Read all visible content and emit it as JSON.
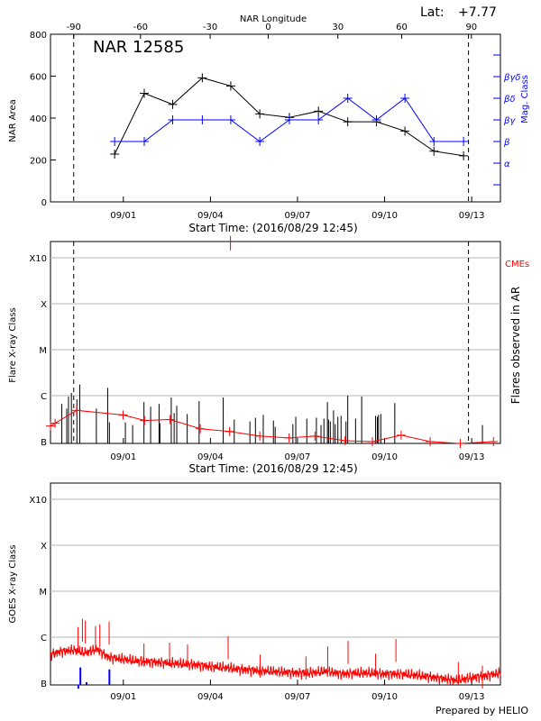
{
  "header": {
    "lat_label": "Lat:",
    "lat_value": "+7.77",
    "credit": "Prepared by HELIO"
  },
  "colors": {
    "axis": "#000000",
    "area_line": "#000000",
    "mag_line": "#0000ff",
    "flux_line": "#ff0000",
    "cme": "#ff0000",
    "grid": "#b4b4b4"
  },
  "chart_data": [
    {
      "type": "line",
      "title": "NAR 12585",
      "xlabel": "Start Time: (2016/08/29 12:45)",
      "ylabel": "NAR Area",
      "y2label": "Mag. Class",
      "top_axis_label": "NAR Longitude",
      "xlim": [
        0,
        15.5
      ],
      "ylim": [
        0,
        800
      ],
      "x_ticks": [
        {
          "x": 2.51,
          "label": "09/01"
        },
        {
          "x": 5.51,
          "label": "09/04"
        },
        {
          "x": 8.51,
          "label": "09/07"
        },
        {
          "x": 11.51,
          "label": "09/10"
        },
        {
          "x": 14.51,
          "label": "09/13"
        }
      ],
      "y_ticks": [
        0,
        200,
        400,
        600,
        800
      ],
      "longitude_ticks": [
        {
          "x": 0.8,
          "label": "-90"
        },
        {
          "x": 3.1,
          "label": "-60"
        },
        {
          "x": 5.5,
          "label": "-30"
        },
        {
          "x": 7.5,
          "label": "0"
        },
        {
          "x": 9.9,
          "label": "30"
        },
        {
          "x": 12.1,
          "label": "60"
        },
        {
          "x": 14.5,
          "label": "90"
        }
      ],
      "mag_class_ticks": [
        {
          "label": "α",
          "level": 1
        },
        {
          "label": "β",
          "level": 2
        },
        {
          "label": "βγ",
          "level": 3
        },
        {
          "label": "βδ",
          "level": 4
        },
        {
          "label": "βγδ",
          "level": 5
        }
      ],
      "vlines_dashed": [
        0.8,
        14.4
      ],
      "series": [
        {
          "key": "area",
          "x": [
            2.21,
            3.23,
            4.21,
            5.23,
            6.21,
            7.21,
            8.23,
            9.23,
            10.24,
            11.23,
            12.21,
            13.21,
            14.23
          ],
          "values": [
            228,
            518,
            465,
            592,
            553,
            420,
            403,
            433,
            382,
            382,
            338,
            242,
            220
          ]
        },
        {
          "key": "mag_class",
          "x": [
            2.21,
            3.23,
            4.21,
            5.23,
            6.21,
            7.21,
            8.23,
            9.23,
            10.24,
            11.23,
            12.21,
            13.21,
            14.23
          ],
          "levels": [
            2,
            2,
            3,
            3,
            3,
            2,
            3,
            3,
            4,
            3,
            4,
            2,
            2
          ]
        }
      ]
    },
    {
      "type": "bar",
      "xlabel": "Start Time: (2016/08/29 12:45)",
      "ylabel": "Flare X-ray Class",
      "y2label": "Flares observed in AR",
      "legend": "CMEs",
      "xlim": [
        0,
        15.5
      ],
      "y_ticks": [
        {
          "label": "B",
          "level": 0
        },
        {
          "label": "C",
          "level": 1
        },
        {
          "label": "M",
          "level": 2
        },
        {
          "label": "X",
          "level": 3
        },
        {
          "label": "X10",
          "level": 4
        }
      ],
      "x_ticks": [
        {
          "x": 2.51,
          "label": "09/01"
        },
        {
          "x": 5.51,
          "label": "09/04"
        },
        {
          "x": 8.51,
          "label": "09/07"
        },
        {
          "x": 11.51,
          "label": "09/10"
        },
        {
          "x": 14.51,
          "label": "09/13"
        }
      ],
      "vlines_dashed": [
        0.8,
        14.4
      ],
      "flares": [
        {
          "x": 0.39,
          "level": 0.82
        },
        {
          "x": 0.56,
          "level": 0.72
        },
        {
          "x": 0.62,
          "level": 0.98
        },
        {
          "x": 0.72,
          "level": 1.06
        },
        {
          "x": 0.91,
          "level": 0.92
        },
        {
          "x": 1.01,
          "level": 1.24
        },
        {
          "x": 1.58,
          "level": 0.72
        },
        {
          "x": 1.97,
          "level": 1.17
        },
        {
          "x": 2.03,
          "level": 0.42
        },
        {
          "x": 2.58,
          "level": 0.42
        },
        {
          "x": 2.83,
          "level": 0.36
        },
        {
          "x": 3.22,
          "level": 0.86
        },
        {
          "x": 3.45,
          "level": 0.76
        },
        {
          "x": 3.74,
          "level": 0.82
        },
        {
          "x": 3.77,
          "level": 0.4
        },
        {
          "x": 4.16,
          "level": 0.96
        },
        {
          "x": 4.26,
          "level": 0.62
        },
        {
          "x": 4.35,
          "level": 0.78
        },
        {
          "x": 4.71,
          "level": 0.6
        },
        {
          "x": 5.12,
          "level": 0.88
        },
        {
          "x": 5.95,
          "level": 0.96
        },
        {
          "x": 6.33,
          "level": 0.48
        },
        {
          "x": 6.87,
          "level": 0.44
        },
        {
          "x": 7.06,
          "level": 0.52
        },
        {
          "x": 7.33,
          "level": 0.58
        },
        {
          "x": 7.68,
          "level": 0.46
        },
        {
          "x": 7.74,
          "level": 0.32
        },
        {
          "x": 8.35,
          "level": 0.38
        },
        {
          "x": 8.45,
          "level": 0.54
        },
        {
          "x": 8.83,
          "level": 0.5
        },
        {
          "x": 9.16,
          "level": 0.52
        },
        {
          "x": 9.32,
          "level": 0.36
        },
        {
          "x": 9.42,
          "level": 0.5
        },
        {
          "x": 9.54,
          "level": 0.86
        },
        {
          "x": 9.58,
          "level": 0.48
        },
        {
          "x": 9.64,
          "level": 0.44
        },
        {
          "x": 9.75,
          "level": 0.68
        },
        {
          "x": 9.81,
          "level": 0.38
        },
        {
          "x": 9.9,
          "level": 0.54
        },
        {
          "x": 10.01,
          "level": 0.56
        },
        {
          "x": 10.18,
          "level": 0.44
        },
        {
          "x": 10.24,
          "level": 1.0
        },
        {
          "x": 10.51,
          "level": 0.5
        },
        {
          "x": 10.72,
          "level": 0.98
        },
        {
          "x": 11.2,
          "level": 0.56
        },
        {
          "x": 11.26,
          "level": 0.54
        },
        {
          "x": 11.3,
          "level": 0.58
        },
        {
          "x": 11.38,
          "level": 0.6
        },
        {
          "x": 11.86,
          "level": 0.84
        },
        {
          "x": 14.88,
          "level": 0.36
        }
      ],
      "cmes": [
        {
          "x": 6.2,
          "level": 4.16
        }
      ],
      "flux_track": {
        "x": [
          0.0,
          0.16,
          0.9,
          2.5,
          3.24,
          4.12,
          5.16,
          6.17,
          7.21,
          8.22,
          9.11,
          10.15,
          11.09,
          12.08,
          13.08,
          14.12,
          15.26
        ],
        "levels": [
          0.34,
          0.4,
          0.68,
          0.58,
          0.46,
          0.48,
          0.28,
          0.22,
          0.12,
          0.08,
          0.12,
          0.02,
          0.0,
          0.14,
          0.0,
          -0.04,
          0.0
        ]
      }
    },
    {
      "type": "line",
      "ylabel": "GOES X-ray Class",
      "xlim": [
        0,
        15.5
      ],
      "y_ticks": [
        {
          "label": "B",
          "level": 0
        },
        {
          "label": "C",
          "level": 1
        },
        {
          "label": "M",
          "level": 2
        },
        {
          "label": "X",
          "level": 3
        },
        {
          "label": "X10",
          "level": 4
        }
      ],
      "x_ticks": [
        {
          "x": 2.51,
          "label": "09/01"
        },
        {
          "x": 5.51,
          "label": "09/04"
        },
        {
          "x": 8.51,
          "label": "09/07"
        },
        {
          "x": 11.51,
          "label": "09/10"
        },
        {
          "x": 14.51,
          "label": "09/13"
        }
      ],
      "flux": {
        "x": [
          0.0,
          0.3,
          0.8,
          1.2,
          1.6,
          2.0,
          2.5,
          3.0,
          3.5,
          4.0,
          4.5,
          5.0,
          5.5,
          6.0,
          6.5,
          7.0,
          7.5,
          8.0,
          8.5,
          9.0,
          9.5,
          10.0,
          10.5,
          11.0,
          11.5,
          12.0,
          12.5,
          13.0,
          13.5,
          14.0,
          14.5,
          15.0,
          15.5
        ],
        "levels": [
          0.62,
          0.68,
          0.72,
          0.66,
          0.74,
          0.56,
          0.52,
          0.48,
          0.46,
          0.44,
          0.42,
          0.4,
          0.36,
          0.34,
          0.3,
          0.28,
          0.26,
          0.24,
          0.22,
          0.22,
          0.26,
          0.2,
          0.22,
          0.22,
          0.2,
          0.2,
          0.18,
          0.14,
          0.1,
          0.06,
          0.12,
          0.16,
          0.22
        ]
      },
      "flux_spikes": [
        {
          "x": 0.95,
          "level": 1.22
        },
        {
          "x": 1.1,
          "level": 1.4
        },
        {
          "x": 1.2,
          "level": 1.36
        },
        {
          "x": 1.55,
          "level": 1.24
        },
        {
          "x": 1.7,
          "level": 1.28
        },
        {
          "x": 2.02,
          "level": 1.34
        },
        {
          "x": 3.22,
          "level": 0.86
        },
        {
          "x": 4.1,
          "level": 0.88
        },
        {
          "x": 4.72,
          "level": 0.84
        },
        {
          "x": 6.12,
          "level": 1.02
        },
        {
          "x": 7.22,
          "level": 0.62
        },
        {
          "x": 8.8,
          "level": 0.58
        },
        {
          "x": 9.55,
          "level": 0.8
        },
        {
          "x": 10.25,
          "level": 0.92
        },
        {
          "x": 11.2,
          "level": 0.64
        },
        {
          "x": 11.9,
          "level": 0.96
        },
        {
          "x": 14.05,
          "level": 0.46
        },
        {
          "x": 14.88,
          "level": 0.38
        }
      ],
      "blue_marks": [
        {
          "x": 0.96,
          "level": -0.12
        },
        {
          "x": 1.03,
          "level": 0.34
        },
        {
          "x": 1.24,
          "level": 0.02
        },
        {
          "x": 2.03,
          "level": 0.3
        }
      ]
    }
  ]
}
